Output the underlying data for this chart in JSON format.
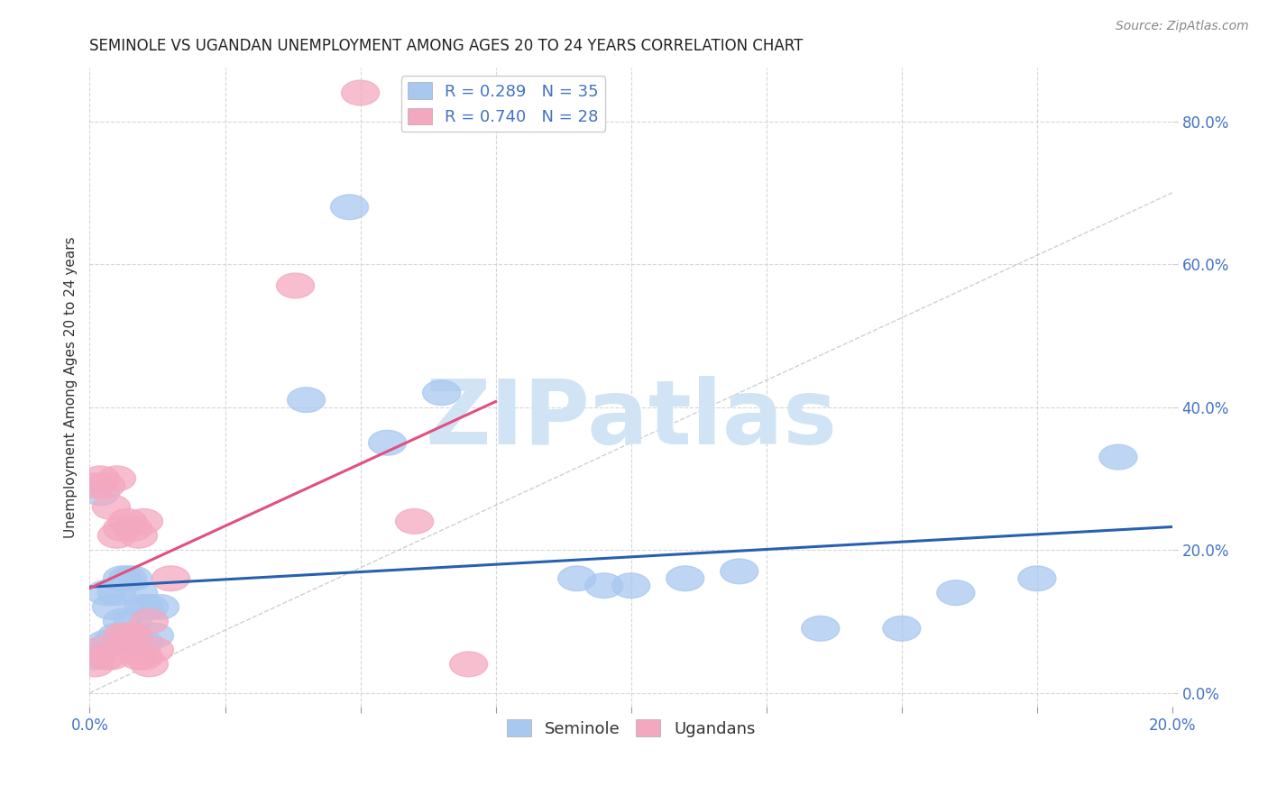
{
  "title": "SEMINOLE VS UGANDAN UNEMPLOYMENT AMONG AGES 20 TO 24 YEARS CORRELATION CHART",
  "source": "Source: ZipAtlas.com",
  "ylabel": "Unemployment Among Ages 20 to 24 years",
  "xlim": [
    0.0,
    0.2
  ],
  "ylim": [
    -0.02,
    0.875
  ],
  "xticks": [
    0.0,
    0.025,
    0.05,
    0.075,
    0.1,
    0.125,
    0.15,
    0.175,
    0.2
  ],
  "yticks": [
    0.0,
    0.2,
    0.4,
    0.6,
    0.8
  ],
  "seminole_R": 0.289,
  "seminole_N": 35,
  "ugandan_R": 0.74,
  "ugandan_N": 28,
  "seminole_color": "#A8C8F0",
  "ugandan_color": "#F4A8C0",
  "seminole_line_color": "#2860B0",
  "ugandan_line_color": "#E05080",
  "watermark_color": "#D0E4F5",
  "background_color": "#FFFFFF",
  "title_color": "#222222",
  "axis_label_color": "#333333",
  "tick_color": "#4472C4",
  "grid_color": "#CCCCCC",
  "seminole_x": [
    0.001,
    0.002,
    0.003,
    0.003,
    0.004,
    0.004,
    0.005,
    0.005,
    0.006,
    0.006,
    0.007,
    0.007,
    0.008,
    0.008,
    0.009,
    0.009,
    0.01,
    0.01,
    0.011,
    0.012,
    0.013,
    0.04,
    0.048,
    0.055,
    0.065,
    0.09,
    0.095,
    0.1,
    0.11,
    0.12,
    0.135,
    0.15,
    0.16,
    0.175,
    0.19
  ],
  "seminole_y": [
    0.05,
    0.28,
    0.07,
    0.14,
    0.07,
    0.12,
    0.08,
    0.14,
    0.1,
    0.16,
    0.08,
    0.16,
    0.1,
    0.16,
    0.07,
    0.14,
    0.12,
    0.07,
    0.12,
    0.08,
    0.12,
    0.41,
    0.68,
    0.35,
    0.42,
    0.16,
    0.15,
    0.15,
    0.16,
    0.17,
    0.09,
    0.09,
    0.14,
    0.16,
    0.33
  ],
  "ugandan_x": [
    0.001,
    0.001,
    0.002,
    0.002,
    0.003,
    0.003,
    0.004,
    0.004,
    0.005,
    0.005,
    0.006,
    0.006,
    0.007,
    0.007,
    0.008,
    0.008,
    0.009,
    0.009,
    0.01,
    0.01,
    0.011,
    0.011,
    0.012,
    0.015,
    0.038,
    0.05,
    0.06,
    0.07
  ],
  "ugandan_y": [
    0.04,
    0.29,
    0.06,
    0.3,
    0.05,
    0.29,
    0.05,
    0.26,
    0.22,
    0.3,
    0.08,
    0.23,
    0.08,
    0.24,
    0.23,
    0.08,
    0.05,
    0.22,
    0.05,
    0.24,
    0.04,
    0.1,
    0.06,
    0.16,
    0.57,
    0.84,
    0.24,
    0.04
  ],
  "legend_fontsize": 13,
  "title_fontsize": 12,
  "axis_label_fontsize": 11,
  "tick_fontsize": 12,
  "source_fontsize": 10
}
